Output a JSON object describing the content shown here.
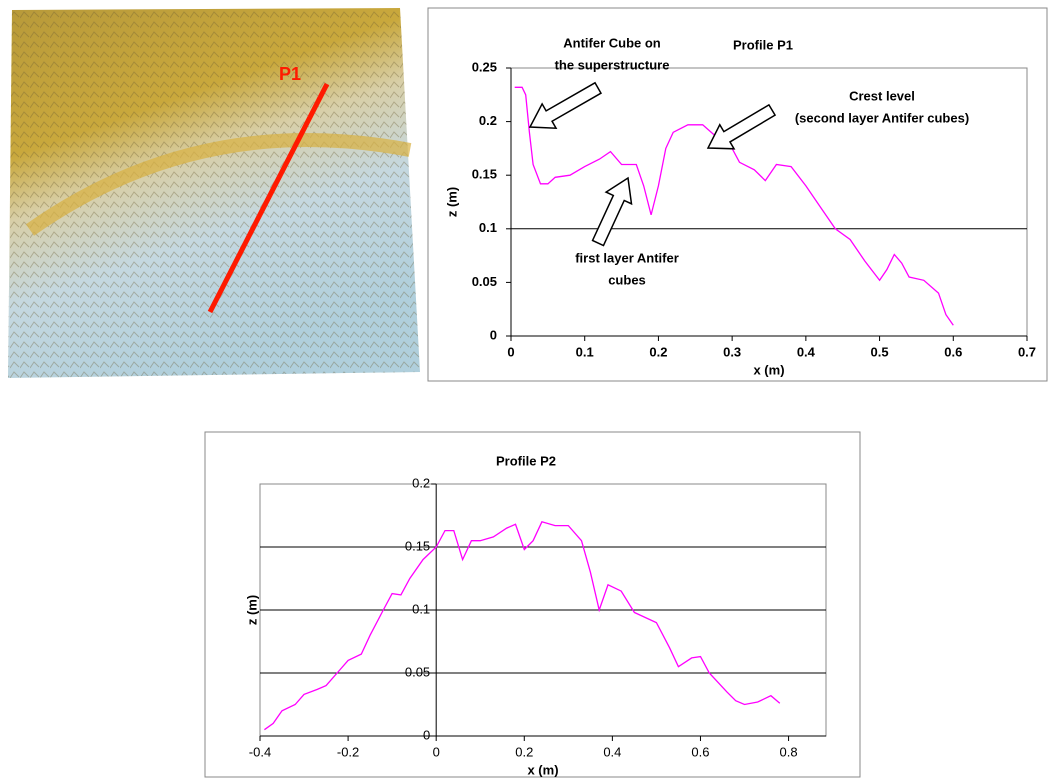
{
  "image": {
    "label": "P1"
  },
  "chart_data": [
    {
      "type": "line",
      "title": "Profile  P1",
      "x_label": "x (m)",
      "y_label": "z (m)",
      "color": "#ff00ff",
      "xlim": [
        0,
        0.7
      ],
      "xticks": [
        0,
        0.1,
        0.2,
        0.3,
        0.4,
        0.5,
        0.6,
        0.7
      ],
      "ylim": [
        0,
        0.25
      ],
      "yticks": [
        0,
        0.05,
        0.1,
        0.15,
        0.2,
        0.25
      ],
      "grid_values": [
        0.1
      ],
      "annotations": [
        [
          "Antifer Cube on",
          "the superstructure"
        ],
        [
          "Crest level",
          "(second layer Antifer cubes)"
        ],
        [
          "first layer Antifer",
          "cubes"
        ]
      ],
      "x": [
        0.005,
        0.015,
        0.02,
        0.025,
        0.03,
        0.04,
        0.05,
        0.06,
        0.08,
        0.1,
        0.12,
        0.135,
        0.15,
        0.17,
        0.18,
        0.19,
        0.2,
        0.21,
        0.22,
        0.24,
        0.26,
        0.28,
        0.3,
        0.31,
        0.33,
        0.345,
        0.36,
        0.38,
        0.4,
        0.42,
        0.44,
        0.46,
        0.48,
        0.5,
        0.51,
        0.52,
        0.53,
        0.54,
        0.56,
        0.58,
        0.59,
        0.6
      ],
      "values": [
        0.232,
        0.232,
        0.225,
        0.19,
        0.16,
        0.142,
        0.142,
        0.148,
        0.15,
        0.158,
        0.165,
        0.172,
        0.16,
        0.16,
        0.14,
        0.113,
        0.14,
        0.175,
        0.19,
        0.197,
        0.197,
        0.185,
        0.175,
        0.162,
        0.155,
        0.145,
        0.16,
        0.158,
        0.14,
        0.12,
        0.1,
        0.09,
        0.07,
        0.052,
        0.062,
        0.076,
        0.068,
        0.055,
        0.052,
        0.04,
        0.02,
        0.01
      ]
    },
    {
      "type": "line",
      "title": "Profile  P2",
      "x_label": "x (m)",
      "y_label": "z (m)",
      "color": "#ff00ff",
      "xlim": [
        -0.4,
        0.885
      ],
      "xticks": [
        -0.4,
        -0.2,
        0,
        0.2,
        0.4,
        0.6,
        0.8
      ],
      "ylim": [
        0,
        0.2
      ],
      "yticks": [
        0,
        0.05,
        0.1,
        0.15,
        0.2
      ],
      "grid_values": [
        0.05,
        0.1,
        0.15
      ],
      "x": [
        -0.39,
        -0.37,
        -0.35,
        -0.32,
        -0.3,
        -0.27,
        -0.25,
        -0.22,
        -0.2,
        -0.17,
        -0.15,
        -0.12,
        -0.1,
        -0.08,
        -0.06,
        -0.03,
        0,
        0.02,
        0.04,
        0.06,
        0.08,
        0.1,
        0.13,
        0.16,
        0.18,
        0.2,
        0.22,
        0.24,
        0.27,
        0.3,
        0.33,
        0.35,
        0.37,
        0.39,
        0.42,
        0.45,
        0.5,
        0.53,
        0.55,
        0.58,
        0.6,
        0.62,
        0.66,
        0.68,
        0.7,
        0.73,
        0.76,
        0.78
      ],
      "values": [
        0.005,
        0.01,
        0.02,
        0.025,
        0.033,
        0.037,
        0.04,
        0.052,
        0.06,
        0.065,
        0.08,
        0.1,
        0.113,
        0.112,
        0.125,
        0.14,
        0.15,
        0.163,
        0.163,
        0.14,
        0.155,
        0.155,
        0.158,
        0.165,
        0.168,
        0.148,
        0.155,
        0.17,
        0.167,
        0.167,
        0.155,
        0.13,
        0.1,
        0.12,
        0.115,
        0.098,
        0.09,
        0.07,
        0.055,
        0.062,
        0.063,
        0.05,
        0.035,
        0.028,
        0.025,
        0.027,
        0.032,
        0.026
      ]
    }
  ]
}
